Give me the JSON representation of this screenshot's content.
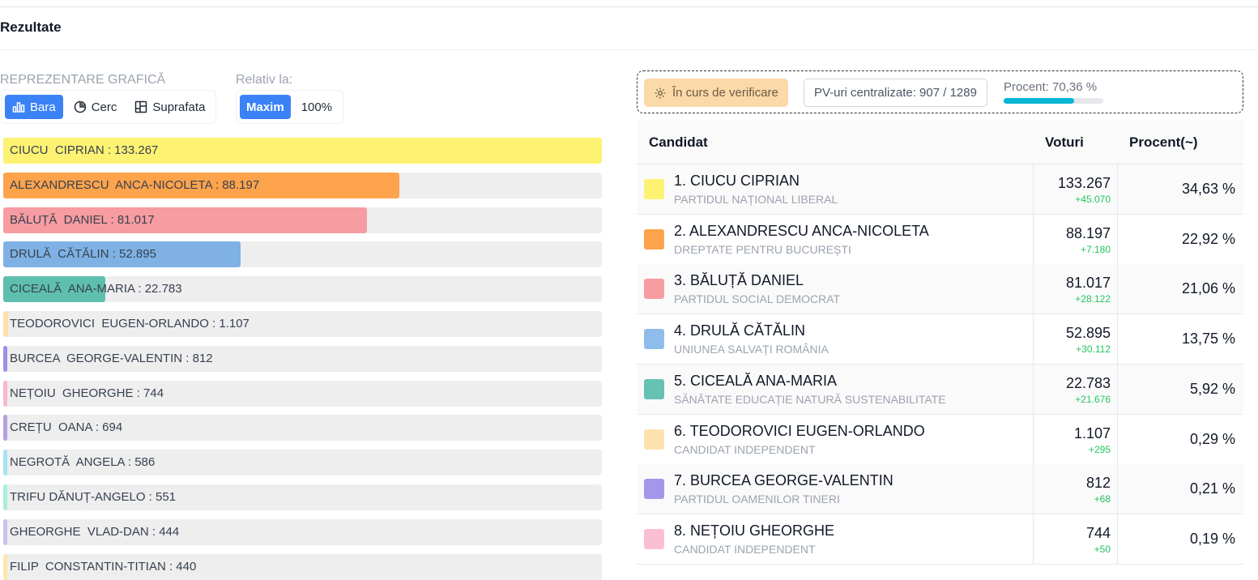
{
  "section_title": "Rezultate",
  "controls": {
    "representation_label": "REPREZENTARE GRAFICĂ",
    "representation_options": [
      {
        "label": "Bara",
        "icon": "bar-chart-icon",
        "active": true
      },
      {
        "label": "Cerc",
        "icon": "pie-chart-icon",
        "active": false
      },
      {
        "label": "Suprafata",
        "icon": "treemap-icon",
        "active": false
      }
    ],
    "relative_label": "Relativ la:",
    "relative_options": [
      {
        "label": "Maxim",
        "active": true
      },
      {
        "label": "100%",
        "active": false
      }
    ]
  },
  "bars": [
    {
      "label": "CIUCU  CIPRIAN : 133.267",
      "votes": 133267,
      "color": "#fef273"
    },
    {
      "label": "ALEXANDRESCU  ANCA-NICOLETA : 88.197",
      "votes": 88197,
      "color": "#fda34b"
    },
    {
      "label": "BĂLUȚĂ  DANIEL : 81.017",
      "votes": 81017,
      "color": "#f79ca1"
    },
    {
      "label": "DRULĂ  CĂTĂLIN : 52.895",
      "votes": 52895,
      "color": "#7fb1e4"
    },
    {
      "label": "CICEALĂ  ANA-MARIA : 22.783",
      "votes": 22783,
      "color": "#5fbfae"
    },
    {
      "label": "TEODOROVICI  EUGEN-ORLANDO : 1.107",
      "votes": 1107,
      "color": "#fddfa8"
    },
    {
      "label": "BURCEA  GEORGE-VALENTIN : 812",
      "votes": 812,
      "color": "#9d8fe8"
    },
    {
      "label": "NEȚOIU  GHEORGHE : 744",
      "votes": 744,
      "color": "#f9b8cc"
    },
    {
      "label": "CREȚU  OANA : 694",
      "votes": 694,
      "color": "#b89ee0"
    },
    {
      "label": "NEGROTĂ  ANGELA : 586",
      "votes": 586,
      "color": "#a5e4f0"
    },
    {
      "label": "TRIFU DĂNUȚ-ANGELO : 551",
      "votes": 551,
      "color": "#a8f0dc"
    },
    {
      "label": "GHEORGHE  VLAD-DAN : 444",
      "votes": 444,
      "color": "#c9c2ec"
    },
    {
      "label": "FILIP  CONSTANTIN-TITIAN : 440",
      "votes": 440,
      "color": "#fde8a8"
    }
  ],
  "bars_max": 133267,
  "status": {
    "badge": "În curs de verificare",
    "pv_text": "PV-uri centralizate: 907 / 1289",
    "percent_label": "Procent: 70,36 %",
    "percent_value": 70.36
  },
  "table": {
    "headers": {
      "candidate": "Candidat",
      "votes": "Voturi",
      "percent": "Procent(~)"
    },
    "rows": [
      {
        "name": "1. CIUCU CIPRIAN",
        "party": "PARTIDUL NAȚIONAL LIBERAL",
        "votes": "133.267",
        "delta": "+45.070",
        "percent": "34,63 %",
        "color": "#fef273"
      },
      {
        "name": "2. ALEXANDRESCU ANCA-NICOLETA",
        "party": "DREPTATE PENTRU BUCUREȘTI",
        "votes": "88.197",
        "delta": "+7.180",
        "percent": "22,92 %",
        "color": "#fda34b"
      },
      {
        "name": "3. BĂLUȚĂ DANIEL",
        "party": "PARTIDUL SOCIAL DEMOCRAT",
        "votes": "81.017",
        "delta": "+28.122",
        "percent": "21,06 %",
        "color": "#f79ca1"
      },
      {
        "name": "4. DRULĂ CĂTĂLIN",
        "party": "UNIUNEA SALVAȚI ROMÂNIA",
        "votes": "52.895",
        "delta": "+30.112",
        "percent": "13,75 %",
        "color": "#8fbdeb"
      },
      {
        "name": "5. CICEALĂ ANA-MARIA",
        "party": "SĂNĂTATE EDUCAȚIE NATURĂ SUSTENABILITATE",
        "votes": "22.783",
        "delta": "+21.676",
        "percent": "5,92 %",
        "color": "#66c2b3"
      },
      {
        "name": "6. TEODOROVICI EUGEN-ORLANDO",
        "party": "CANDIDAT INDEPENDENT",
        "votes": "1.107",
        "delta": "+295",
        "percent": "0,29 %",
        "color": "#fde2b0"
      },
      {
        "name": "7. BURCEA GEORGE-VALENTIN",
        "party": "PARTIDUL OAMENILOR TINERI",
        "votes": "812",
        "delta": "+68",
        "percent": "0,21 %",
        "color": "#a596ec"
      },
      {
        "name": "8. NEȚOIU GHEORGHE",
        "party": "CANDIDAT INDEPENDENT",
        "votes": "744",
        "delta": "+50",
        "percent": "0,19 %",
        "color": "#fbbfd2"
      }
    ]
  }
}
